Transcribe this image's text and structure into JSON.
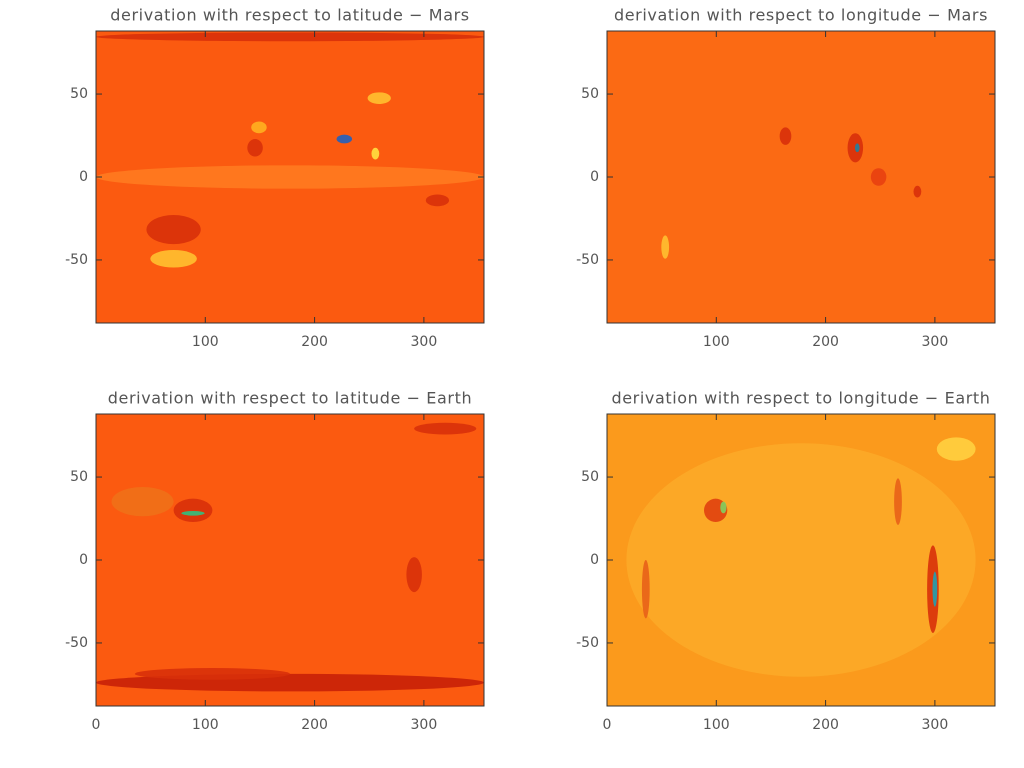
{
  "chart_data": [
    {
      "type": "contour",
      "title": "derivation with respect to latitude − Mars",
      "color": "#fb5a10",
      "xlim": [
        0,
        355
      ],
      "ylim": [
        -88,
        88
      ],
      "xticks": [
        100,
        200,
        300
      ],
      "yticks": [
        -50,
        0,
        50
      ]
    },
    {
      "type": "contour",
      "title": "derivation with respect to longitude − Mars",
      "color": "#fb6a14",
      "xlim": [
        0,
        355
      ],
      "ylim": [
        -88,
        88
      ],
      "xticks": [
        100,
        200,
        300
      ],
      "yticks": [
        -50,
        0,
        50
      ]
    },
    {
      "type": "contour",
      "title": "derivation with respect to latitude − Earth",
      "color": "#fb5a10",
      "xlim": [
        0,
        355
      ],
      "ylim": [
        -88,
        88
      ],
      "xticks": [
        0,
        100,
        200,
        300
      ],
      "yticks": [
        -50,
        0,
        50
      ]
    },
    {
      "type": "contour",
      "title": "derivation with respect to longitude − Earth",
      "color": "#fb9a1c",
      "xlim": [
        0,
        355
      ],
      "ylim": [
        -88,
        88
      ],
      "xticks": [
        0,
        100,
        200,
        300
      ],
      "yticks": [
        -50,
        0,
        50
      ]
    }
  ]
}
